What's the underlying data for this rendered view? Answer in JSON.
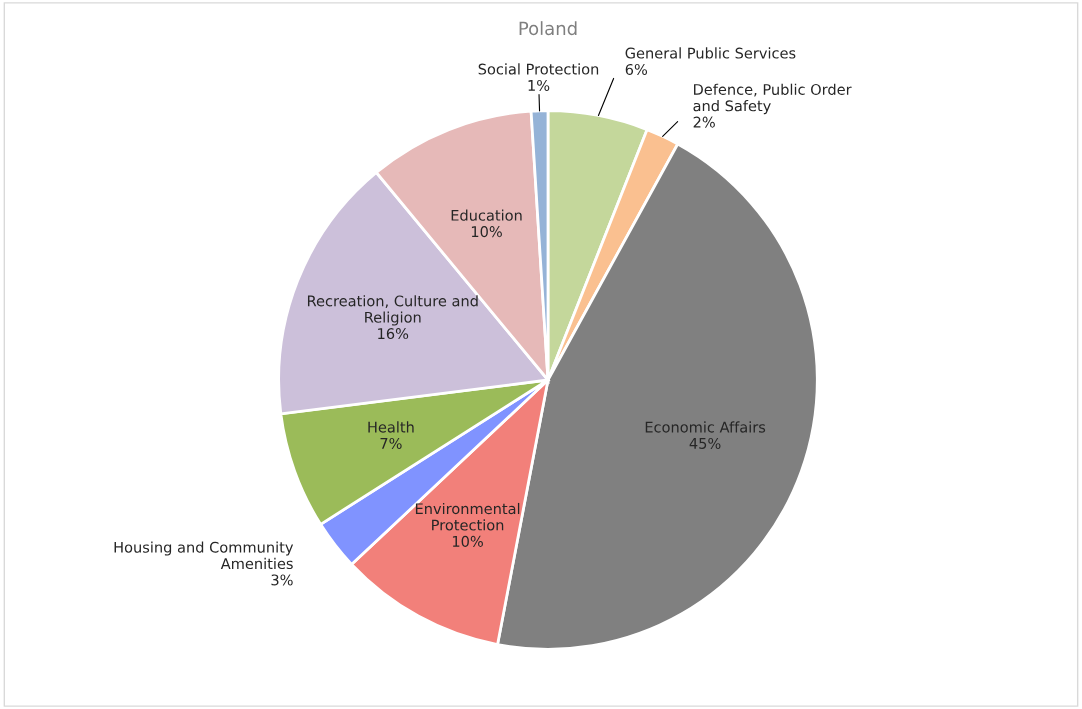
{
  "chart_data": {
    "type": "pie",
    "title": "Poland",
    "categories": [
      "General Public Services",
      "Defence, Public Order and Safety",
      "Economic Affairs",
      "Environmental Protection",
      "Housing and Community Amenities",
      "Health",
      "Recreation, Culture and Religion",
      "Education",
      "Social Protection"
    ],
    "values": [
      6,
      2,
      45,
      10,
      3,
      7,
      16,
      10,
      1
    ],
    "value_labels": [
      "6%",
      "2%",
      "45%",
      "10%",
      "3%",
      "7%",
      "16%",
      "10%",
      "1%"
    ],
    "colors": [
      "#c4d79b",
      "#fac090",
      "#808080",
      "#f2807a",
      "#8093ff",
      "#9bbb59",
      "#ccc0da",
      "#e6b9b8",
      "#95b3d7"
    ],
    "legend": false
  }
}
